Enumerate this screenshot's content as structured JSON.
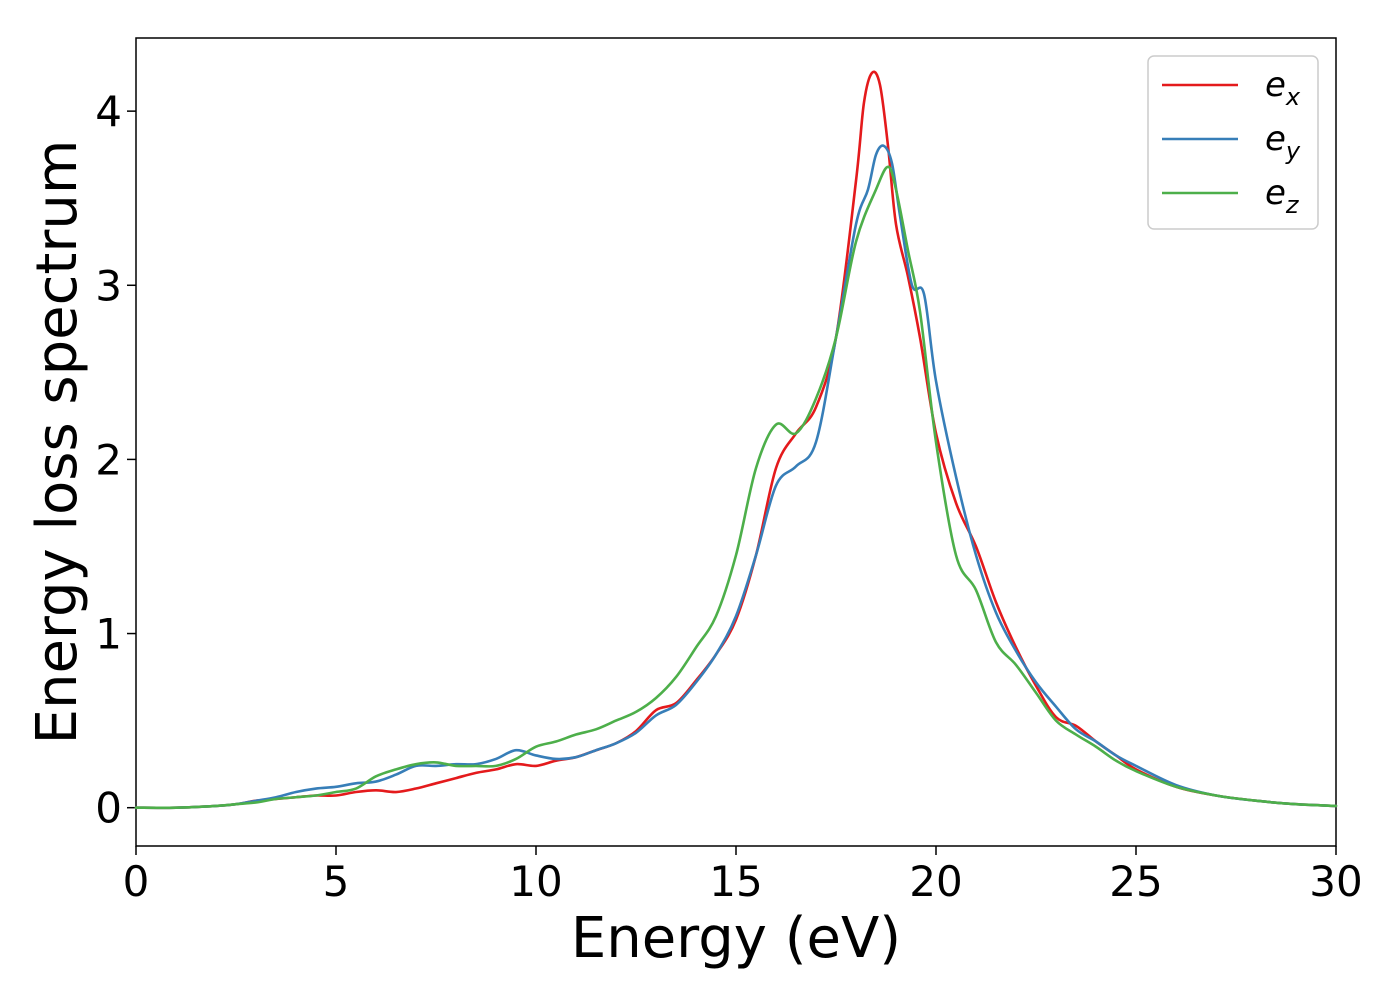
{
  "chart_data": {
    "type": "line",
    "xlabel": "Energy (eV)",
    "ylabel": "Energy loss spectrum",
    "xlim": [
      0,
      30
    ],
    "ylim": [
      -0.22,
      4.42
    ],
    "xticks": [
      "0",
      "5",
      "10",
      "15",
      "20",
      "25",
      "30"
    ],
    "yticks": [
      "0",
      "1",
      "2",
      "3",
      "4"
    ],
    "grid": false,
    "legend_position": "top-right",
    "series": [
      {
        "name": "e_x",
        "label_main": "e",
        "label_sub": "x",
        "color": "#e41a1c",
        "x": [
          0,
          1,
          2,
          2.5,
          3,
          3.5,
          4,
          4.5,
          5,
          5.5,
          6,
          6.5,
          7,
          7.5,
          8,
          8.5,
          9,
          9.5,
          10,
          10.5,
          11,
          11.5,
          12,
          12.5,
          13,
          13.5,
          14,
          14.5,
          15,
          15.5,
          16,
          16.5,
          17,
          17.5,
          18,
          18.2,
          18.4,
          18.6,
          18.8,
          19,
          19.3,
          19.6,
          20,
          20.5,
          21,
          21.5,
          22,
          22.5,
          23,
          23.5,
          24,
          24.5,
          25,
          26,
          27,
          28,
          29,
          30
        ],
        "y": [
          0,
          0,
          0.01,
          0.02,
          0.04,
          0.05,
          0.06,
          0.07,
          0.07,
          0.09,
          0.1,
          0.09,
          0.11,
          0.14,
          0.17,
          0.2,
          0.22,
          0.25,
          0.24,
          0.27,
          0.29,
          0.33,
          0.37,
          0.44,
          0.56,
          0.6,
          0.73,
          0.88,
          1.08,
          1.45,
          1.95,
          2.15,
          2.3,
          2.7,
          3.6,
          4.05,
          4.22,
          4.15,
          3.8,
          3.35,
          3.05,
          2.7,
          2.15,
          1.75,
          1.5,
          1.18,
          0.92,
          0.7,
          0.52,
          0.47,
          0.38,
          0.3,
          0.22,
          0.12,
          0.07,
          0.04,
          0.02,
          0.01
        ]
      },
      {
        "name": "e_y",
        "label_main": "e",
        "label_sub": "y",
        "color": "#377eb8",
        "x": [
          0,
          1,
          2,
          2.5,
          3,
          3.5,
          4,
          4.5,
          5,
          5.5,
          6,
          6.5,
          7,
          7.5,
          8,
          8.5,
          9,
          9.5,
          10,
          10.5,
          11,
          11.5,
          12,
          12.5,
          13,
          13.5,
          14,
          14.5,
          15,
          15.5,
          16,
          16.5,
          17,
          17.5,
          18,
          18.3,
          18.5,
          18.7,
          18.9,
          19.1,
          19.4,
          19.7,
          20,
          20.5,
          21,
          21.5,
          22,
          22.5,
          23,
          23.5,
          24,
          24.5,
          25,
          26,
          27,
          28,
          29,
          30
        ],
        "y": [
          0,
          0,
          0.01,
          0.02,
          0.04,
          0.06,
          0.09,
          0.11,
          0.12,
          0.14,
          0.15,
          0.19,
          0.24,
          0.24,
          0.25,
          0.25,
          0.28,
          0.33,
          0.3,
          0.28,
          0.29,
          0.33,
          0.37,
          0.43,
          0.53,
          0.59,
          0.72,
          0.88,
          1.1,
          1.45,
          1.85,
          1.96,
          2.1,
          2.7,
          3.35,
          3.55,
          3.75,
          3.8,
          3.7,
          3.4,
          3.0,
          2.95,
          2.45,
          1.9,
          1.45,
          1.12,
          0.9,
          0.72,
          0.58,
          0.45,
          0.38,
          0.3,
          0.24,
          0.13,
          0.07,
          0.04,
          0.02,
          0.01
        ]
      },
      {
        "name": "e_z",
        "label_main": "e",
        "label_sub": "z",
        "color": "#4daf4a",
        "x": [
          0,
          1,
          2,
          2.5,
          3,
          3.5,
          4,
          4.5,
          5,
          5.5,
          6,
          6.5,
          7,
          7.5,
          8,
          8.5,
          9,
          9.5,
          10,
          10.5,
          11,
          11.5,
          12,
          12.5,
          13,
          13.5,
          14,
          14.5,
          15,
          15.5,
          16,
          16.5,
          17,
          17.5,
          18,
          18.5,
          18.8,
          19,
          19.3,
          19.6,
          20,
          20.5,
          21,
          21.5,
          22,
          22.5,
          23,
          23.5,
          24,
          24.5,
          25,
          26,
          27,
          28,
          29,
          30
        ],
        "y": [
          0,
          0,
          0.01,
          0.02,
          0.03,
          0.05,
          0.06,
          0.07,
          0.09,
          0.11,
          0.18,
          0.22,
          0.25,
          0.26,
          0.24,
          0.24,
          0.24,
          0.28,
          0.35,
          0.38,
          0.42,
          0.45,
          0.5,
          0.55,
          0.63,
          0.75,
          0.92,
          1.1,
          1.45,
          1.95,
          2.2,
          2.15,
          2.35,
          2.7,
          3.25,
          3.55,
          3.68,
          3.55,
          3.2,
          2.85,
          2.1,
          1.45,
          1.25,
          0.95,
          0.82,
          0.66,
          0.5,
          0.42,
          0.35,
          0.27,
          0.21,
          0.12,
          0.07,
          0.04,
          0.02,
          0.01
        ]
      }
    ]
  }
}
